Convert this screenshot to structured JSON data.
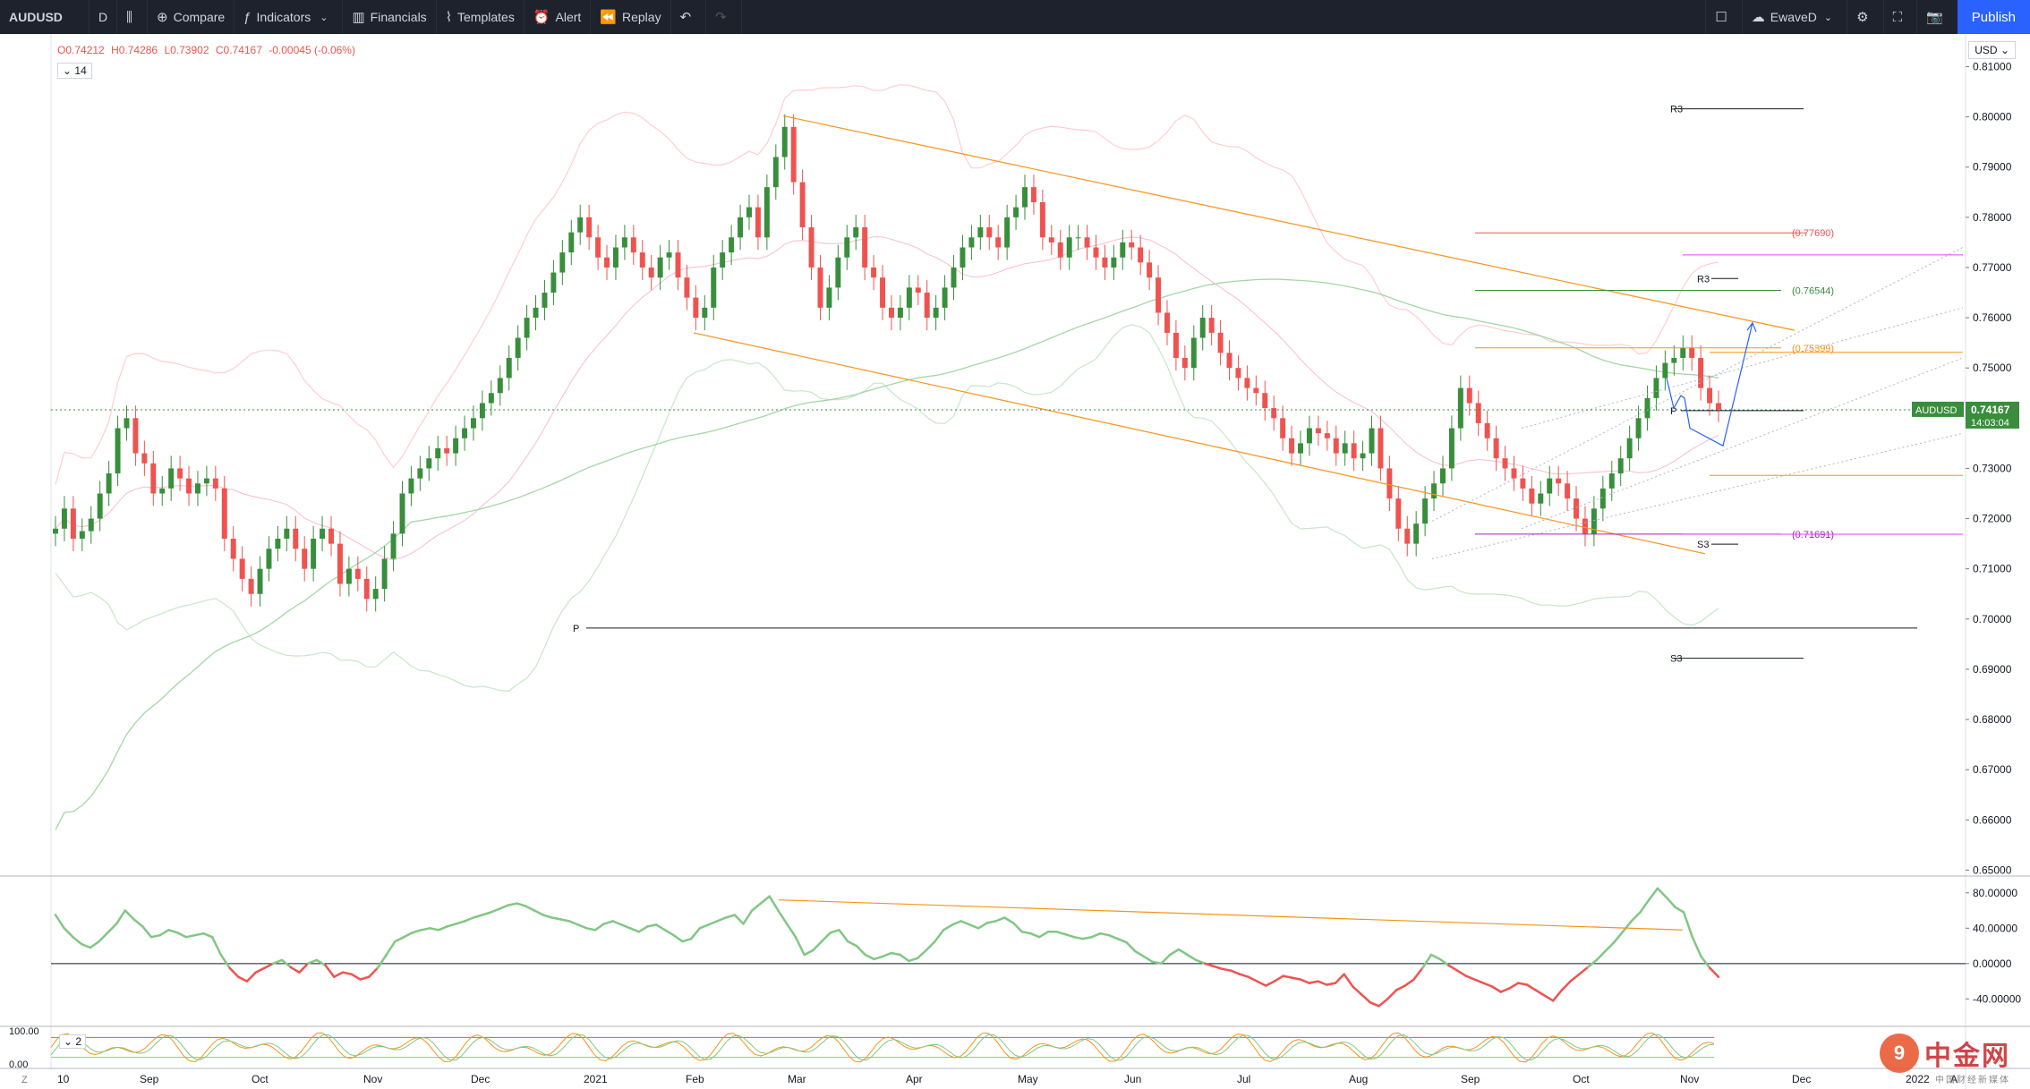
{
  "toolbar": {
    "symbol": "AUDUSD",
    "interval": "D",
    "compare": "Compare",
    "indicators": "Indicators",
    "financials": "Financials",
    "templates": "Templates",
    "alert": "Alert",
    "replay": "Replay",
    "layout_name": "EwaveD",
    "publish": "Publish"
  },
  "legend": {
    "open": "O0.74212",
    "high": "H0.74286",
    "low": "L0.73902",
    "close": "C0.74167",
    "change": "-0.00045 (-0.06%)",
    "indicator_param": "14",
    "sub_param": "2"
  },
  "price_axis": {
    "currency": "USD",
    "ticks": [
      "0.81000",
      "0.80000",
      "0.79000",
      "0.78000",
      "0.77000",
      "0.76000",
      "0.75000",
      "0.74000",
      "0.73000",
      "0.72000",
      "0.71000",
      "0.70000",
      "0.69000",
      "0.68000",
      "0.67000",
      "0.66000",
      "0.65000"
    ],
    "last_symbol": "AUDUSD",
    "last_price": "0.74167",
    "countdown": "14:03:04"
  },
  "osc_axis": {
    "ticks": [
      "80.00000",
      "40.00000",
      "0.00000",
      "-40.00000"
    ],
    "sub_ticks": [
      "100.00",
      "0.00"
    ]
  },
  "time_axis": {
    "labels": [
      "10",
      "Sep",
      "Oct",
      "Nov",
      "Dec",
      "2021",
      "Feb",
      "Mar",
      "Apr",
      "May",
      "Jun",
      "Jul",
      "Aug",
      "Sep",
      "Oct",
      "Nov",
      "Dec",
      "2022",
      "A"
    ]
  },
  "annotations": {
    "pivot_labels": [
      {
        "text": "R3",
        "price": 0.8016
      },
      {
        "text": "P",
        "price": 0.6982
      },
      {
        "text": "S3",
        "price": 0.6922
      },
      {
        "text": "R3",
        "price": 0.7678
      },
      {
        "text": "P",
        "price": 0.7415
      },
      {
        "text": "S3",
        "price": 0.7149
      }
    ],
    "fib_labels": [
      {
        "text": "(0.77690)",
        "price": 0.7769,
        "color": "#ef5350"
      },
      {
        "text": "(0.76544)",
        "price": 0.76544,
        "color": "#388e3c"
      },
      {
        "text": "(0.75399)",
        "price": 0.75399,
        "color": "#f7931a"
      },
      {
        "text": "(0.71691)",
        "price": 0.71691,
        "color": "#9c27b0"
      }
    ]
  },
  "watermark": {
    "logo_char": "9",
    "text": "中金网",
    "sub": "中国财经新媒体"
  },
  "chart_data": {
    "type": "candlestick",
    "symbol": "AUDUSD",
    "interval": "D",
    "ylim": [
      0.649,
      0.8165
    ],
    "colors": {
      "up": "#26a69a",
      "up_body": "#388e3c",
      "down": "#ef5350"
    },
    "series": [
      {
        "name": "AUDUSD",
        "close": [
          0.718,
          0.722,
          0.716,
          0.7175,
          0.72,
          0.725,
          0.729,
          0.738,
          0.74,
          0.733,
          0.731,
          0.725,
          0.726,
          0.73,
          0.728,
          0.725,
          0.727,
          0.728,
          0.726,
          0.716,
          0.712,
          0.708,
          0.705,
          0.71,
          0.714,
          0.716,
          0.718,
          0.714,
          0.71,
          0.716,
          0.718,
          0.715,
          0.707,
          0.71,
          0.708,
          0.704,
          0.706,
          0.712,
          0.717,
          0.725,
          0.728,
          0.73,
          0.732,
          0.734,
          0.733,
          0.736,
          0.738,
          0.74,
          0.743,
          0.745,
          0.748,
          0.752,
          0.756,
          0.76,
          0.762,
          0.765,
          0.769,
          0.773,
          0.777,
          0.78,
          0.776,
          0.772,
          0.77,
          0.774,
          0.776,
          0.773,
          0.77,
          0.768,
          0.772,
          0.773,
          0.768,
          0.764,
          0.76,
          0.762,
          0.77,
          0.773,
          0.776,
          0.78,
          0.782,
          0.776,
          0.786,
          0.792,
          0.798,
          0.787,
          0.778,
          0.77,
          0.762,
          0.766,
          0.772,
          0.776,
          0.778,
          0.77,
          0.768,
          0.762,
          0.76,
          0.762,
          0.766,
          0.765,
          0.76,
          0.762,
          0.766,
          0.77,
          0.774,
          0.776,
          0.778,
          0.776,
          0.774,
          0.78,
          0.782,
          0.786,
          0.783,
          0.776,
          0.775,
          0.772,
          0.776,
          0.776,
          0.774,
          0.772,
          0.77,
          0.772,
          0.775,
          0.774,
          0.771,
          0.768,
          0.761,
          0.757,
          0.752,
          0.75,
          0.756,
          0.76,
          0.757,
          0.753,
          0.75,
          0.748,
          0.746,
          0.745,
          0.742,
          0.74,
          0.736,
          0.733,
          0.735,
          0.738,
          0.737,
          0.736,
          0.733,
          0.735,
          0.732,
          0.733,
          0.738,
          0.73,
          0.724,
          0.718,
          0.715,
          0.719,
          0.724,
          0.727,
          0.73,
          0.738,
          0.746,
          0.743,
          0.739,
          0.736,
          0.732,
          0.73,
          0.728,
          0.726,
          0.723,
          0.725,
          0.728,
          0.727,
          0.724,
          0.72,
          0.717,
          0.722,
          0.726,
          0.729,
          0.732,
          0.736,
          0.74,
          0.744,
          0.748,
          0.751,
          0.752,
          0.754,
          0.752,
          0.746,
          0.743,
          0.7417
        ]
      }
    ],
    "moving_average": {
      "name": "",
      "color": "#81c784"
    },
    "oscillator": {
      "ylim": [
        -70,
        98
      ],
      "values": [
        55,
        40,
        30,
        22,
        18,
        25,
        35,
        45,
        60,
        50,
        42,
        30,
        32,
        38,
        35,
        30,
        32,
        34,
        30,
        10,
        -5,
        -15,
        -20,
        -10,
        -5,
        0,
        4,
        -4,
        -10,
        0,
        4,
        -2,
        -15,
        -10,
        -12,
        -18,
        -15,
        -5,
        10,
        25,
        30,
        35,
        38,
        40,
        38,
        42,
        45,
        48,
        52,
        55,
        58,
        62,
        66,
        68,
        65,
        60,
        55,
        52,
        50,
        48,
        44,
        40,
        38,
        45,
        48,
        44,
        40,
        36,
        42,
        44,
        38,
        32,
        25,
        28,
        40,
        44,
        48,
        52,
        55,
        45,
        60,
        68,
        76,
        60,
        45,
        30,
        10,
        15,
        25,
        35,
        38,
        25,
        20,
        10,
        5,
        8,
        12,
        10,
        3,
        6,
        15,
        25,
        38,
        44,
        48,
        44,
        40,
        46,
        48,
        52,
        46,
        36,
        34,
        30,
        36,
        36,
        33,
        30,
        28,
        30,
        34,
        32,
        28,
        24,
        14,
        8,
        2,
        0,
        10,
        16,
        10,
        4,
        0,
        -3,
        -6,
        -8,
        -12,
        -15,
        -20,
        -25,
        -20,
        -14,
        -16,
        -18,
        -22,
        -20,
        -24,
        -22,
        -12,
        -26,
        -35,
        -44,
        -48,
        -40,
        -30,
        -25,
        -18,
        -5,
        10,
        5,
        -2,
        -8,
        -14,
        -18,
        -22,
        -26,
        -32,
        -28,
        -22,
        -24,
        -30,
        -36,
        -42,
        -30,
        -20,
        -12,
        -4,
        4,
        14,
        24,
        36,
        48,
        58,
        72,
        85,
        75,
        64,
        58,
        30,
        8,
        -5,
        -15
      ]
    },
    "sub_oscillator": {
      "ylim": [
        0,
        100
      ]
    }
  }
}
